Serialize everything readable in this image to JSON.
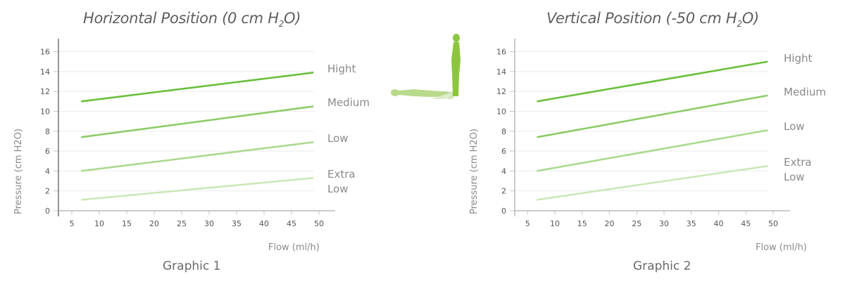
{
  "chart_data": [
    {
      "type": "line",
      "title": "Horizontal Position (0 cm H2O)",
      "title_parts": {
        "pre": "Horizontal Position (0 cm H",
        "sub": "2",
        "post": "O)"
      },
      "caption": "Graphic 1",
      "xlabel": "Flow (ml/h)",
      "ylabel": "Pressure (cm H2O)",
      "xlim": [
        0,
        55
      ],
      "ylim": [
        0,
        17
      ],
      "xticks": [
        5,
        10,
        15,
        20,
        25,
        30,
        35,
        40,
        45,
        50
      ],
      "yticks": [
        0,
        2,
        4,
        6,
        8,
        10,
        12,
        14,
        16
      ],
      "grid": true,
      "series": [
        {
          "name": "Hight",
          "label_lines": [
            "Hight"
          ],
          "x": [
            6.7,
            49
          ],
          "values": [
            11.0,
            13.9
          ],
          "color": "#6abf3c",
          "width": 2.6
        },
        {
          "name": "Medium",
          "label_lines": [
            "Medium"
          ],
          "x": [
            6.7,
            49
          ],
          "values": [
            7.4,
            10.5
          ],
          "color": "#8dcc69",
          "width": 2.6
        },
        {
          "name": "Low",
          "label_lines": [
            "Low"
          ],
          "x": [
            6.7,
            49
          ],
          "values": [
            4.0,
            6.9
          ],
          "color": "#abd98e",
          "width": 2.6
        },
        {
          "name": "Extra Low",
          "label_lines": [
            "Extra",
            "Low"
          ],
          "x": [
            6.7,
            49
          ],
          "values": [
            1.1,
            3.3
          ],
          "color": "#cbe8b8",
          "width": 2.6
        }
      ]
    },
    {
      "type": "line",
      "title": "Vertical Position (-50 cm H2O)",
      "title_parts": {
        "pre": "Vertical Position (-50 cm H",
        "sub": "2",
        "post": "O)"
      },
      "caption": "Graphic 2",
      "xlabel": "Flow (ml/h)",
      "ylabel": "Pressure (cm H2O)",
      "xlim": [
        0,
        55
      ],
      "ylim": [
        0,
        17
      ],
      "xticks": [
        5,
        10,
        15,
        20,
        25,
        30,
        35,
        40,
        45,
        50
      ],
      "yticks": [
        0,
        2,
        4,
        6,
        8,
        10,
        12,
        14,
        16
      ],
      "grid": true,
      "series": [
        {
          "name": "Hight",
          "label_lines": [
            "Hight"
          ],
          "x": [
            6.7,
            49
          ],
          "values": [
            11.0,
            15.0
          ],
          "color": "#6abf3c",
          "width": 2.6
        },
        {
          "name": "Medium",
          "label_lines": [
            "Medium"
          ],
          "x": [
            6.7,
            49
          ],
          "values": [
            7.4,
            11.6
          ],
          "color": "#8dcc69",
          "width": 2.6
        },
        {
          "name": "Low",
          "label_lines": [
            "Low"
          ],
          "x": [
            6.7,
            49
          ],
          "values": [
            4.0,
            8.1
          ],
          "color": "#abd98e",
          "width": 2.6
        },
        {
          "name": "Extra Low",
          "label_lines": [
            "Extra",
            "Low"
          ],
          "x": [
            6.7,
            49
          ],
          "values": [
            1.1,
            4.5
          ],
          "color": "#cbe8b8",
          "width": 2.6
        }
      ]
    }
  ],
  "illustration": {
    "icon": "body-tilt-figure-icon",
    "colors": [
      "#e6f0d8",
      "#d8eac4",
      "#c6e1a6",
      "#b3d884",
      "#8cc63f"
    ]
  },
  "colors": {
    "axis_left": "#6a6a6a",
    "axis_right": "#b5b5b5",
    "grid": "#efefef",
    "text": "#8a8a8c",
    "title": "#5f5f61"
  }
}
